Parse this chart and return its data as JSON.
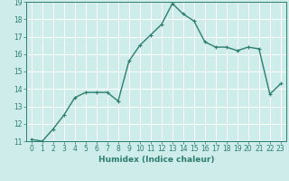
{
  "x": [
    0,
    1,
    2,
    3,
    4,
    5,
    6,
    7,
    8,
    9,
    10,
    11,
    12,
    13,
    14,
    15,
    16,
    17,
    18,
    19,
    20,
    21,
    22,
    23
  ],
  "y": [
    11.1,
    11.0,
    11.7,
    12.5,
    13.5,
    13.8,
    13.8,
    13.8,
    13.3,
    15.6,
    16.5,
    17.1,
    17.7,
    18.9,
    18.3,
    17.9,
    16.7,
    16.4,
    16.4,
    16.2,
    16.4,
    16.3,
    13.7,
    14.3
  ],
  "line_color": "#2e7d6e",
  "marker": "+",
  "marker_size": 3,
  "bg_color": "#cdecea",
  "grid_color": "#ffffff",
  "xlabel": "Humidex (Indice chaleur)",
  "xlim": [
    -0.5,
    23.5
  ],
  "ylim": [
    11,
    19
  ],
  "yticks": [
    11,
    12,
    13,
    14,
    15,
    16,
    17,
    18,
    19
  ],
  "xticks": [
    0,
    1,
    2,
    3,
    4,
    5,
    6,
    7,
    8,
    9,
    10,
    11,
    12,
    13,
    14,
    15,
    16,
    17,
    18,
    19,
    20,
    21,
    22,
    23
  ],
  "tick_label_fontsize": 5.5,
  "xlabel_fontsize": 6.5,
  "line_width": 1.0
}
